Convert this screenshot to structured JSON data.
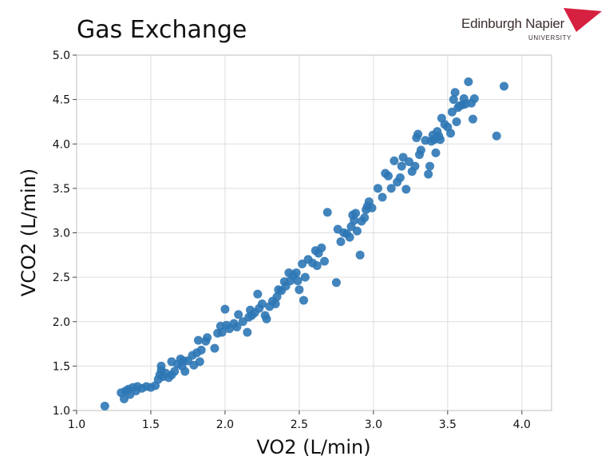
{
  "logo": {
    "name": "Edinburgh Napier",
    "subtitle": "UNIVERSITY",
    "accent": "#d6203f"
  },
  "chart_data": {
    "type": "scatter",
    "title": "Gas Exchange",
    "xlabel": "VO2 (L/min)",
    "ylabel": "VCO2  (L/min)",
    "xlim": [
      1.0,
      4.2
    ],
    "ylim": [
      1.0,
      5.0
    ],
    "xticks": [
      "1.0",
      "1.5",
      "2.0",
      "2.5",
      "3.0",
      "3.5",
      "4.0"
    ],
    "yticks": [
      "1.0",
      "1.5",
      "2.0",
      "2.5",
      "3.0",
      "3.5",
      "4.0",
      "4.5",
      "5.0"
    ],
    "grid": true,
    "marker_color": "#2e77b5",
    "series": [
      {
        "points": [
          [
            1.19,
            1.05
          ],
          [
            1.3,
            1.2
          ],
          [
            1.32,
            1.13
          ],
          [
            1.33,
            1.22
          ],
          [
            1.35,
            1.24
          ],
          [
            1.36,
            1.18
          ],
          [
            1.38,
            1.26
          ],
          [
            1.4,
            1.22
          ],
          [
            1.41,
            1.27
          ],
          [
            1.44,
            1.25
          ],
          [
            1.47,
            1.27
          ],
          [
            1.5,
            1.26
          ],
          [
            1.53,
            1.28
          ],
          [
            1.55,
            1.35
          ],
          [
            1.56,
            1.4
          ],
          [
            1.57,
            1.45
          ],
          [
            1.57,
            1.5
          ],
          [
            1.58,
            1.38
          ],
          [
            1.6,
            1.42
          ],
          [
            1.62,
            1.37
          ],
          [
            1.64,
            1.4
          ],
          [
            1.64,
            1.55
          ],
          [
            1.66,
            1.44
          ],
          [
            1.68,
            1.52
          ],
          [
            1.7,
            1.58
          ],
          [
            1.71,
            1.5
          ],
          [
            1.72,
            1.56
          ],
          [
            1.73,
            1.44
          ],
          [
            1.75,
            1.56
          ],
          [
            1.78,
            1.62
          ],
          [
            1.79,
            1.51
          ],
          [
            1.81,
            1.65
          ],
          [
            1.82,
            1.79
          ],
          [
            1.83,
            1.55
          ],
          [
            1.84,
            1.68
          ],
          [
            1.87,
            1.78
          ],
          [
            1.88,
            1.82
          ],
          [
            1.93,
            1.7
          ],
          [
            1.95,
            1.87
          ],
          [
            1.97,
            1.95
          ],
          [
            1.98,
            1.88
          ],
          [
            2.0,
            2.14
          ],
          [
            2.01,
            1.96
          ],
          [
            2.03,
            1.92
          ],
          [
            2.06,
            1.98
          ],
          [
            2.08,
            1.94
          ],
          [
            2.09,
            2.08
          ],
          [
            2.12,
            2.0
          ],
          [
            2.15,
            1.88
          ],
          [
            2.16,
            2.05
          ],
          [
            2.17,
            2.13
          ],
          [
            2.18,
            2.07
          ],
          [
            2.2,
            2.1
          ],
          [
            2.22,
            2.31
          ],
          [
            2.23,
            2.15
          ],
          [
            2.25,
            2.2
          ],
          [
            2.27,
            2.07
          ],
          [
            2.28,
            2.03
          ],
          [
            2.3,
            2.17
          ],
          [
            2.32,
            2.23
          ],
          [
            2.34,
            2.2
          ],
          [
            2.35,
            2.28
          ],
          [
            2.36,
            2.36
          ],
          [
            2.38,
            2.35
          ],
          [
            2.4,
            2.45
          ],
          [
            2.41,
            2.4
          ],
          [
            2.43,
            2.55
          ],
          [
            2.44,
            2.46
          ],
          [
            2.46,
            2.52
          ],
          [
            2.48,
            2.55
          ],
          [
            2.49,
            2.46
          ],
          [
            2.5,
            2.36
          ],
          [
            2.52,
            2.65
          ],
          [
            2.53,
            2.24
          ],
          [
            2.54,
            2.5
          ],
          [
            2.56,
            2.7
          ],
          [
            2.59,
            2.66
          ],
          [
            2.61,
            2.8
          ],
          [
            2.62,
            2.63
          ],
          [
            2.63,
            2.77
          ],
          [
            2.65,
            2.83
          ],
          [
            2.67,
            2.68
          ],
          [
            2.69,
            3.23
          ],
          [
            2.75,
            2.44
          ],
          [
            2.76,
            3.04
          ],
          [
            2.78,
            2.9
          ],
          [
            2.8,
            3.0
          ],
          [
            2.82,
            2.99
          ],
          [
            2.84,
            2.95
          ],
          [
            2.85,
            3.07
          ],
          [
            2.86,
            3.2
          ],
          [
            2.87,
            3.14
          ],
          [
            2.88,
            3.22
          ],
          [
            2.89,
            3.02
          ],
          [
            2.91,
            2.75
          ],
          [
            2.92,
            3.13
          ],
          [
            2.94,
            3.17
          ],
          [
            2.95,
            3.26
          ],
          [
            2.96,
            3.3
          ],
          [
            2.97,
            3.35
          ],
          [
            2.99,
            3.28
          ],
          [
            3.03,
            3.5
          ],
          [
            3.06,
            3.4
          ],
          [
            3.08,
            3.67
          ],
          [
            3.1,
            3.64
          ],
          [
            3.12,
            3.5
          ],
          [
            3.14,
            3.81
          ],
          [
            3.16,
            3.57
          ],
          [
            3.18,
            3.62
          ],
          [
            3.19,
            3.75
          ],
          [
            3.2,
            3.85
          ],
          [
            3.22,
            3.49
          ],
          [
            3.24,
            3.8
          ],
          [
            3.26,
            3.69
          ],
          [
            3.28,
            3.75
          ],
          [
            3.29,
            4.07
          ],
          [
            3.3,
            4.11
          ],
          [
            3.31,
            3.88
          ],
          [
            3.32,
            3.93
          ],
          [
            3.35,
            4.04
          ],
          [
            3.37,
            3.66
          ],
          [
            3.38,
            3.75
          ],
          [
            3.39,
            4.03
          ],
          [
            3.4,
            4.1
          ],
          [
            3.41,
            4.05
          ],
          [
            3.42,
            3.9
          ],
          [
            3.43,
            4.14
          ],
          [
            3.44,
            4.09
          ],
          [
            3.45,
            4.05
          ],
          [
            3.46,
            4.29
          ],
          [
            3.48,
            4.22
          ],
          [
            3.5,
            4.19
          ],
          [
            3.52,
            4.12
          ],
          [
            3.53,
            4.36
          ],
          [
            3.54,
            4.5
          ],
          [
            3.55,
            4.58
          ],
          [
            3.56,
            4.25
          ],
          [
            3.57,
            4.41
          ],
          [
            3.58,
            4.43
          ],
          [
            3.6,
            4.44
          ],
          [
            3.61,
            4.51
          ],
          [
            3.62,
            4.45
          ],
          [
            3.64,
            4.7
          ],
          [
            3.66,
            4.46
          ],
          [
            3.67,
            4.28
          ],
          [
            3.68,
            4.51
          ],
          [
            3.83,
            4.09
          ],
          [
            3.88,
            4.65
          ]
        ]
      }
    ]
  }
}
